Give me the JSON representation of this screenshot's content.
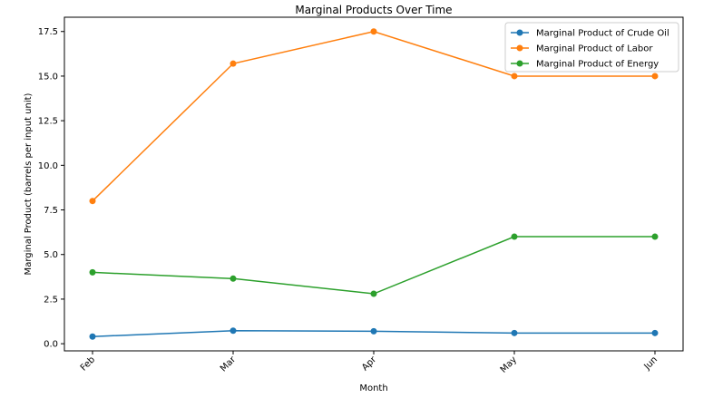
{
  "chart_data": {
    "type": "line",
    "title": "Marginal Products Over Time",
    "xlabel": "Month",
    "ylabel": "Marginal Product (barrels per input unit)",
    "categories": [
      "Feb",
      "Mar",
      "Apr",
      "May",
      "Jun"
    ],
    "ylim": [
      -0.4,
      18.3
    ],
    "yticks": [
      "0.0",
      "2.5",
      "5.0",
      "7.5",
      "10.0",
      "12.5",
      "15.0",
      "17.5"
    ],
    "grid": false,
    "legend_position": "top-right",
    "series": [
      {
        "name": "Marginal Product of Crude Oil",
        "color": "#1f77b4",
        "values": [
          0.4,
          0.73,
          0.7,
          0.6,
          0.6
        ]
      },
      {
        "name": "Marginal Product of Labor",
        "color": "#ff7f0e",
        "values": [
          8.0,
          15.7,
          17.5,
          15.0,
          15.0
        ]
      },
      {
        "name": "Marginal Product of Energy",
        "color": "#2ca02c",
        "values": [
          4.0,
          3.65,
          2.8,
          6.0,
          6.0
        ]
      }
    ]
  }
}
